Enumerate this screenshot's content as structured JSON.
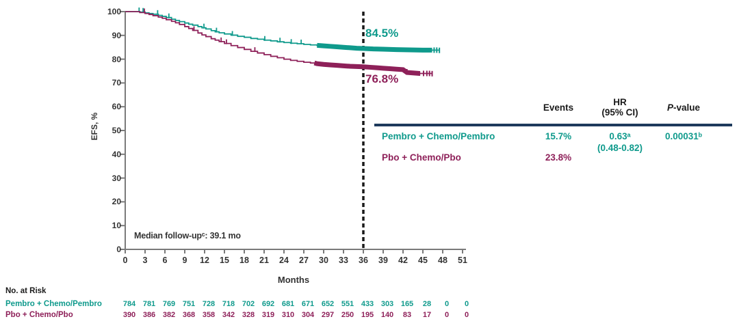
{
  "colors": {
    "teal": "#0F9A8C",
    "maroon": "#8E2059",
    "navy": "#1E3A5C",
    "axis": "#7A7A7A",
    "dashed_line": "#1A1A1A"
  },
  "chart_data": {
    "type": "line",
    "subtype": "kaplan-meier",
    "title": "",
    "xlabel": "Months",
    "ylabel": "EFS, %",
    "xlim": [
      0,
      51
    ],
    "ylim": [
      0,
      100
    ],
    "xticks": [
      0,
      3,
      6,
      9,
      12,
      15,
      18,
      21,
      24,
      27,
      30,
      33,
      36,
      39,
      42,
      45,
      48,
      51
    ],
    "yticks": [
      0,
      10,
      20,
      30,
      40,
      50,
      60,
      70,
      80,
      90,
      100
    ],
    "grid": false,
    "dashed_line_x": 36,
    "annotations": {
      "curve_label_top": "84.5%",
      "curve_label_bottom": "76.8%",
      "median_followup": "Median follow-upᶜ: 39.1 mo"
    },
    "series": [
      {
        "name": "Pembro + Chemo/Pembro",
        "color": "#0F9A8C",
        "rate_at_36mo": 84.5,
        "points": [
          [
            0,
            100
          ],
          [
            1.8,
            100
          ],
          [
            2.2,
            99.8
          ],
          [
            3,
            99.5
          ],
          [
            3.6,
            99.2
          ],
          [
            4.2,
            98.9
          ],
          [
            5,
            98.4
          ],
          [
            5.6,
            98
          ],
          [
            6.2,
            97.5
          ],
          [
            7,
            96.8
          ],
          [
            7.6,
            96.3
          ],
          [
            8.2,
            95.8
          ],
          [
            9,
            95.2
          ],
          [
            9.6,
            94.7
          ],
          [
            10.2,
            94.3
          ],
          [
            11,
            93.7
          ],
          [
            11.6,
            93.2
          ],
          [
            12.2,
            92.7
          ],
          [
            13,
            92
          ],
          [
            13.6,
            91.5
          ],
          [
            14.2,
            91.1
          ],
          [
            15,
            90.6
          ],
          [
            16,
            90.1
          ],
          [
            17,
            89.6
          ],
          [
            18,
            89.2
          ],
          [
            19,
            88.7
          ],
          [
            20,
            88.4
          ],
          [
            21,
            88
          ],
          [
            22,
            87.7
          ],
          [
            23,
            87.3
          ],
          [
            24,
            87
          ],
          [
            25,
            86.7
          ],
          [
            26,
            86.5
          ],
          [
            27,
            86.2
          ],
          [
            28,
            86
          ],
          [
            29,
            85.8
          ],
          [
            30,
            85.6
          ],
          [
            31,
            85.4
          ],
          [
            32,
            85.2
          ],
          [
            33,
            85
          ],
          [
            34,
            84.8
          ],
          [
            35,
            84.6
          ],
          [
            36,
            84.5
          ],
          [
            37.5,
            84.3
          ],
          [
            39,
            84.2
          ],
          [
            41,
            84
          ],
          [
            43,
            83.9
          ],
          [
            45,
            83.8
          ],
          [
            47.4,
            83.7
          ]
        ],
        "censor_band": [
          29,
          46.4
        ],
        "censor_ticks": [
          2.1,
          2.7,
          4.9,
          6.6,
          11.9,
          13.8,
          16.2,
          21.1,
          23.4,
          25.1,
          26.6
        ],
        "end_ticks": [
          46.7,
          47.1,
          47.5
        ]
      },
      {
        "name": "Pbo + Chemo/Pbo",
        "color": "#8E2059",
        "rate_at_36mo": 76.8,
        "points": [
          [
            0,
            100
          ],
          [
            1.8,
            100
          ],
          [
            2.2,
            99.6
          ],
          [
            3,
            99.2
          ],
          [
            3.6,
            98.8
          ],
          [
            4.2,
            98.3
          ],
          [
            5,
            97.7
          ],
          [
            5.6,
            97.2
          ],
          [
            6.2,
            96.6
          ],
          [
            7,
            95.9
          ],
          [
            7.6,
            95.3
          ],
          [
            8.2,
            94.6
          ],
          [
            9,
            93.7
          ],
          [
            9.6,
            92.9
          ],
          [
            10.2,
            92.1
          ],
          [
            11,
            91
          ],
          [
            11.6,
            90.2
          ],
          [
            12.2,
            89.5
          ],
          [
            13,
            88.6
          ],
          [
            13.6,
            88
          ],
          [
            14.2,
            87.4
          ],
          [
            15,
            86.6
          ],
          [
            16,
            85.7
          ],
          [
            17,
            84.9
          ],
          [
            18,
            84.1
          ],
          [
            19,
            83.3
          ],
          [
            20,
            82.6
          ],
          [
            21,
            81.9
          ],
          [
            22,
            81.2
          ],
          [
            23,
            80.6
          ],
          [
            24,
            80
          ],
          [
            25,
            79.5
          ],
          [
            26,
            79.1
          ],
          [
            27,
            78.7
          ],
          [
            28,
            78.4
          ],
          [
            29,
            78.1
          ],
          [
            30,
            77.8
          ],
          [
            31,
            77.6
          ],
          [
            32,
            77.4
          ],
          [
            33,
            77.2
          ],
          [
            34,
            77
          ],
          [
            35,
            76.9
          ],
          [
            36,
            76.8
          ],
          [
            37,
            76.6
          ],
          [
            38,
            76.4
          ],
          [
            39,
            76.2
          ],
          [
            40,
            76
          ],
          [
            41,
            75.8
          ],
          [
            42,
            75.6
          ],
          [
            42.6,
            74.4
          ],
          [
            43.5,
            74.2
          ],
          [
            44.5,
            74
          ],
          [
            46.3,
            73.9
          ]
        ],
        "censor_band": [
          28.6,
          44.6
        ],
        "censor_ticks": [
          2.9,
          10.4,
          14.5,
          15.3,
          19.6
        ],
        "end_ticks": [
          45.1,
          45.6,
          46,
          46.4
        ]
      }
    ]
  },
  "stats_table": {
    "headers": {
      "events": "Events",
      "hr_line1": "HR",
      "hr_line2": "(95% CI)",
      "p_italic": "P",
      "p_rest": "-value"
    },
    "rows": [
      {
        "label": "Pembro + Chemo/Pembro",
        "events": "15.7%"
      },
      {
        "label": "Pbo + Chemo/Pbo",
        "events": "23.8%"
      }
    ],
    "hr_value": "0.63ᵃ",
    "hr_ci": "(0.48-0.82)",
    "p_value": "0.00031ᵇ"
  },
  "risk_table": {
    "title": "No. at Risk",
    "months": [
      0,
      3,
      6,
      9,
      12,
      15,
      18,
      21,
      24,
      27,
      30,
      33,
      36,
      39,
      42,
      45,
      48,
      51
    ],
    "rows": [
      {
        "label": "Pembro + Chemo/Pembro",
        "values": [
          784,
          781,
          769,
          751,
          728,
          718,
          702,
          692,
          681,
          671,
          652,
          551,
          433,
          303,
          165,
          28,
          0,
          0
        ]
      },
      {
        "label": "Pbo + Chemo/Pbo",
        "values": [
          390,
          386,
          382,
          368,
          358,
          342,
          328,
          319,
          310,
          304,
          297,
          250,
          195,
          140,
          83,
          17,
          0,
          0
        ]
      }
    ]
  }
}
